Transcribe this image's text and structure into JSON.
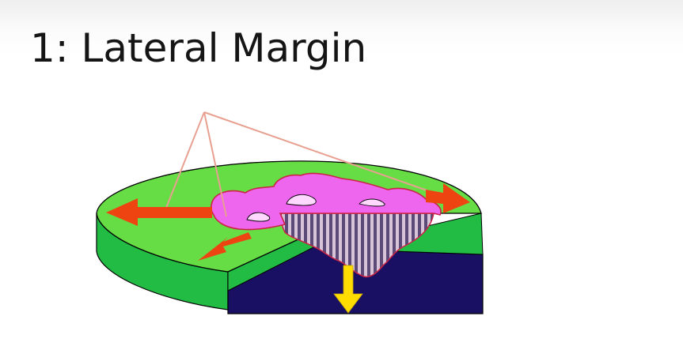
{
  "slide": {
    "title": "1: Lateral Margin"
  },
  "colors": {
    "land_green": "#66dd44",
    "wall_green": "#22bb44",
    "section_dark": "#1a1063",
    "magma_pink": "#ee66ee",
    "magma_outline": "#cc2244",
    "lateral_arrow": "#ee4411",
    "subsidence_arrow": "#ffdd00",
    "pointer_lines": "#e8a090",
    "striped_body": "#776688"
  },
  "icons": {
    "lateral_arrows": "arrow-icon",
    "subsidence_arrow": "down-arrow-icon"
  }
}
